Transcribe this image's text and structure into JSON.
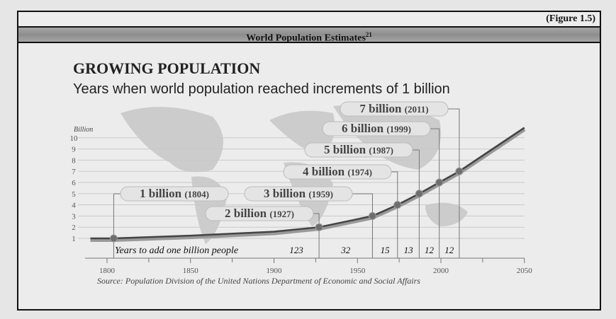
{
  "figure_label": "(Figure 1.5)",
  "header": {
    "title": "World Population Estimates",
    "footnote": "21"
  },
  "chart_data": {
    "type": "line",
    "title": "GROWING POPULATION",
    "subtitle": "Years when world population reached increments of 1 billion",
    "ylabel": "Billion",
    "xlim": [
      1790,
      2050
    ],
    "ylim": [
      0,
      10
    ],
    "grid": true,
    "x_ticks": [
      1800,
      1850,
      1900,
      1950,
      2000,
      2050
    ],
    "y_ticks": [
      1,
      2,
      3,
      4,
      5,
      6,
      7,
      8,
      9,
      10
    ],
    "curve": [
      [
        1790,
        1
      ],
      [
        1804,
        1
      ],
      [
        1850,
        1.25
      ],
      [
        1900,
        1.6
      ],
      [
        1927,
        2
      ],
      [
        1959,
        3
      ],
      [
        1974,
        4
      ],
      [
        1987,
        5
      ],
      [
        1999,
        6
      ],
      [
        2011,
        7
      ],
      [
        2030,
        8.9
      ],
      [
        2050,
        10.9
      ]
    ],
    "milestones": [
      {
        "billion": 1,
        "year": 1804,
        "label": "1 billion",
        "year_label": "(1804)"
      },
      {
        "billion": 2,
        "year": 1927,
        "label": "2 billion",
        "year_label": "(1927)"
      },
      {
        "billion": 3,
        "year": 1959,
        "label": "3 billion",
        "year_label": "(1959)"
      },
      {
        "billion": 4,
        "year": 1974,
        "label": "4 billion",
        "year_label": "(1974)"
      },
      {
        "billion": 5,
        "year": 1987,
        "label": "5 billion",
        "year_label": "(1987)"
      },
      {
        "billion": 6,
        "year": 1999,
        "label": "6 billion",
        "year_label": "(1999)"
      },
      {
        "billion": 7,
        "year": 2011,
        "label": "7 billion",
        "year_label": "(2011)"
      }
    ],
    "years_to_add_label": "Years to add one billion people",
    "years_to_add": [
      "123",
      "32",
      "15",
      "13",
      "12",
      "12"
    ],
    "source": "Source: Population Division of the United Nations Department of Economic and Social Affairs",
    "colors": {
      "line": "#444444",
      "dot": "#6e6e6e",
      "map": "#c4c4c4"
    }
  }
}
